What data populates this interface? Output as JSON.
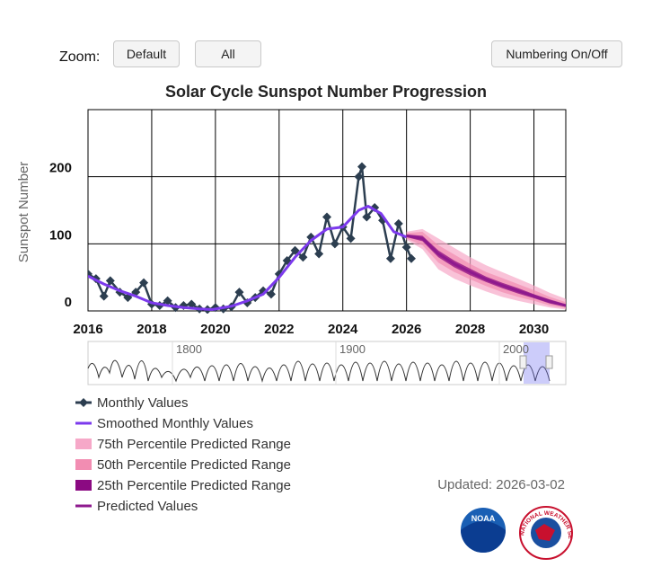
{
  "controls": {
    "zoom_label": "Zoom:",
    "default_button": "Default",
    "all_button": "All",
    "numbering_button": "Numbering On/Off"
  },
  "chart_data": {
    "type": "line",
    "title": "Solar Cycle Sunspot Number Progression",
    "y_label": "Sunspot Number",
    "xlim": [
      2016,
      2031
    ],
    "xticks": [
      2016,
      2018,
      2020,
      2022,
      2024,
      2026,
      2028,
      2030
    ],
    "ylim": [
      0,
      300
    ],
    "yticks": [
      0,
      100,
      200
    ],
    "grid": true,
    "series": [
      {
        "name": "Monthly Values",
        "style": "line-markers",
        "color": "#2c3e50",
        "x": [
          2016.0,
          2016.25,
          2016.5,
          2016.7,
          2017.0,
          2017.25,
          2017.5,
          2017.75,
          2018.0,
          2018.25,
          2018.5,
          2018.75,
          2019.0,
          2019.25,
          2019.5,
          2019.75,
          2020.0,
          2020.25,
          2020.5,
          2020.75,
          2021.0,
          2021.25,
          2021.5,
          2021.75,
          2022.0,
          2022.25,
          2022.5,
          2022.75,
          2023.0,
          2023.25,
          2023.5,
          2023.75,
          2024.0,
          2024.25,
          2024.5,
          2024.6,
          2024.75,
          2025.0,
          2025.25,
          2025.5,
          2025.75,
          2026.0,
          2026.15
        ],
        "values": [
          55,
          48,
          22,
          45,
          28,
          20,
          28,
          42,
          10,
          8,
          15,
          5,
          8,
          10,
          3,
          2,
          5,
          3,
          6,
          28,
          12,
          20,
          30,
          25,
          55,
          75,
          90,
          80,
          110,
          85,
          140,
          100,
          125,
          108,
          200,
          215,
          140,
          154,
          135,
          78,
          130,
          95,
          78
        ]
      },
      {
        "name": "Smoothed Monthly Values",
        "style": "line",
        "color": "#7c3aed",
        "x": [
          2016.0,
          2016.5,
          2017.0,
          2017.5,
          2018.0,
          2018.5,
          2019.0,
          2019.5,
          2019.9,
          2020.5,
          2021.0,
          2021.5,
          2022.0,
          2022.5,
          2023.0,
          2023.5,
          2024.0,
          2024.5,
          2024.8,
          2025.2,
          2025.6,
          2026.0
        ],
        "values": [
          52,
          40,
          30,
          22,
          12,
          8,
          5,
          3,
          2,
          7,
          15,
          25,
          50,
          80,
          105,
          122,
          125,
          150,
          156,
          145,
          118,
          110
        ]
      },
      {
        "name": "75th Percentile Predicted Range",
        "style": "band",
        "color": "#f6a8c8",
        "x": [
          2026.0,
          2026.5,
          2027.0,
          2027.5,
          2028.0,
          2028.5,
          2029.0,
          2029.5,
          2030.0,
          2030.5,
          2031.0
        ],
        "lower": [
          106,
          92,
          62,
          48,
          38,
          29,
          21,
          15,
          10,
          5,
          2
        ],
        "upper": [
          118,
          122,
          108,
          94,
          80,
          68,
          58,
          48,
          38,
          27,
          18
        ]
      },
      {
        "name": "50th Percentile Predicted Range",
        "style": "band",
        "color": "#f28db2",
        "x": [
          2026.0,
          2026.5,
          2027.0,
          2027.5,
          2028.0,
          2028.5,
          2029.0,
          2029.5,
          2030.0,
          2030.5,
          2031.0
        ],
        "lower": [
          108,
          98,
          72,
          58,
          47,
          37,
          28,
          21,
          15,
          8,
          4
        ],
        "upper": [
          116,
          118,
          98,
          84,
          70,
          58,
          49,
          40,
          31,
          21,
          13
        ]
      },
      {
        "name": "25th Percentile Predicted Range",
        "style": "band",
        "color": "#8b0a82",
        "x": [
          2026.0,
          2026.5,
          2027.0,
          2027.5,
          2028.0,
          2028.5,
          2029.0,
          2029.5,
          2030.0,
          2030.5,
          2031.0
        ],
        "lower": [
          110,
          104,
          80,
          65,
          53,
          43,
          34,
          26,
          19,
          11,
          6
        ],
        "upper": [
          114,
          112,
          90,
          75,
          63,
          51,
          42,
          34,
          25,
          17,
          10
        ]
      },
      {
        "name": "Predicted Values",
        "style": "line",
        "color": "#8e1a8e",
        "x": [
          2026.0,
          2026.5,
          2027.0,
          2027.5,
          2028.0,
          2028.5,
          2029.0,
          2029.5,
          2030.0,
          2030.5,
          2031.0
        ],
        "values": [
          112,
          108,
          85,
          70,
          58,
          47,
          38,
          30,
          22,
          14,
          8
        ]
      }
    ],
    "navigator": {
      "xticks": [
        1800,
        1900,
        2000
      ]
    }
  },
  "footer": {
    "updated": "Updated: 2026-03-02",
    "noaa": "NOAA",
    "nws": "NATIONAL WEATHER SERVICE"
  }
}
